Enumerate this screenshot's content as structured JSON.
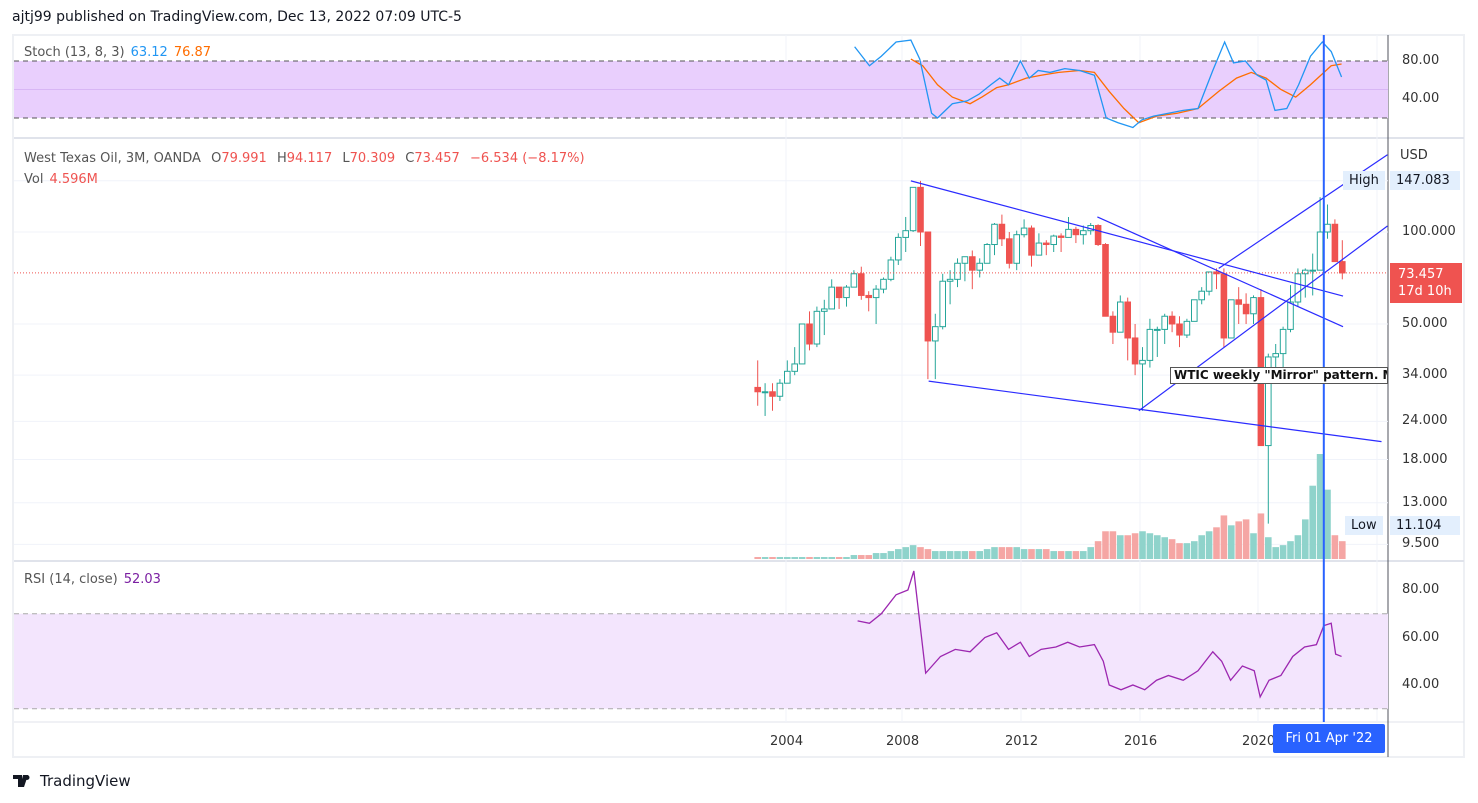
{
  "header": {
    "published": "ajtj99 published on TradingView.com, Dec 13, 2022 07:09 UTC-5"
  },
  "stoch": {
    "label": "Stoch (13, 8, 3)",
    "k": "63.12",
    "d": "76.87",
    "axis": [
      "80.00",
      "40.00"
    ],
    "k_color": "#2196f3",
    "d_color": "#ff6d00",
    "k_series": [
      [
        2006.4,
        95
      ],
      [
        2006.9,
        75
      ],
      [
        2007.3,
        85
      ],
      [
        2007.8,
        100
      ],
      [
        2008.3,
        102
      ],
      [
        2008.6,
        82
      ],
      [
        2009.0,
        25
      ],
      [
        2009.2,
        20
      ],
      [
        2009.7,
        35
      ],
      [
        2010.2,
        38
      ],
      [
        2010.6,
        45
      ],
      [
        2011.0,
        55
      ],
      [
        2011.3,
        62
      ],
      [
        2011.6,
        55
      ],
      [
        2012.0,
        80
      ],
      [
        2012.3,
        62
      ],
      [
        2012.6,
        70
      ],
      [
        2013.0,
        68
      ],
      [
        2013.5,
        72
      ],
      [
        2014.0,
        70
      ],
      [
        2014.5,
        65
      ],
      [
        2014.9,
        20
      ],
      [
        2015.3,
        15
      ],
      [
        2015.8,
        10
      ],
      [
        2016.1,
        18
      ],
      [
        2016.5,
        22
      ],
      [
        2017.0,
        25
      ],
      [
        2017.5,
        28
      ],
      [
        2018.0,
        30
      ],
      [
        2018.5,
        70
      ],
      [
        2018.9,
        100
      ],
      [
        2019.2,
        78
      ],
      [
        2019.6,
        80
      ],
      [
        2020.0,
        65
      ],
      [
        2020.3,
        60
      ],
      [
        2020.6,
        28
      ],
      [
        2021.0,
        30
      ],
      [
        2021.4,
        55
      ],
      [
        2021.8,
        85
      ],
      [
        2022.2,
        100
      ],
      [
        2022.5,
        90
      ],
      [
        2022.85,
        63.12
      ]
    ],
    "d_series": [
      [
        2008.3,
        82
      ],
      [
        2008.7,
        75
      ],
      [
        2009.2,
        55
      ],
      [
        2009.7,
        42
      ],
      [
        2010.3,
        35
      ],
      [
        2010.7,
        42
      ],
      [
        2011.2,
        52
      ],
      [
        2011.6,
        55
      ],
      [
        2012.2,
        62
      ],
      [
        2012.7,
        65
      ],
      [
        2013.3,
        68
      ],
      [
        2014.0,
        70
      ],
      [
        2014.5,
        68
      ],
      [
        2015.0,
        48
      ],
      [
        2015.5,
        30
      ],
      [
        2016.0,
        15
      ],
      [
        2016.6,
        22
      ],
      [
        2017.3,
        25
      ],
      [
        2018.0,
        30
      ],
      [
        2018.7,
        48
      ],
      [
        2019.3,
        62
      ],
      [
        2019.8,
        68
      ],
      [
        2020.3,
        62
      ],
      [
        2020.8,
        50
      ],
      [
        2021.3,
        42
      ],
      [
        2021.8,
        55
      ],
      [
        2022.5,
        75
      ],
      [
        2022.85,
        76.87
      ]
    ]
  },
  "main": {
    "symbol": "West Texas Oil, 3M, OANDA",
    "o_label": "O",
    "o": "79.991",
    "h_label": "H",
    "h": "94.117",
    "l_label": "L",
    "l": "70.309",
    "c_label": "C",
    "c": "73.457",
    "change": "−6.534 (−8.17%)",
    "vol_label": "Vol",
    "vol": "4.596M",
    "currency": "USD",
    "axis": [
      "147.083",
      "100.000",
      "50.000",
      "34.000",
      "24.000",
      "18.000",
      "13.000",
      "9.500"
    ],
    "high_label": "High",
    "high_value": "147.083",
    "low_label": "Low",
    "low_value": "11.104",
    "last_price": "73.457",
    "countdown": "17d 10h",
    "note": "WTIC weekly \"Mirror\" pattern. Mirror",
    "up_color": "#26a69a",
    "down_color": "#ef5350",
    "line_color": "#2b2bff",
    "start_year": 2003,
    "candles": [
      [
        31,
        38,
        27,
        30
      ],
      [
        30,
        32,
        25,
        30
      ],
      [
        30,
        32,
        26,
        29
      ],
      [
        29,
        33,
        28,
        32
      ],
      [
        32,
        38,
        32,
        35
      ],
      [
        35,
        42,
        34,
        37
      ],
      [
        37,
        50,
        37,
        50
      ],
      [
        50,
        55,
        41,
        43
      ],
      [
        43,
        57,
        42,
        55
      ],
      [
        55,
        60,
        46,
        56
      ],
      [
        56,
        70,
        56,
        66
      ],
      [
        66,
        66,
        56,
        61
      ],
      [
        61,
        67,
        57,
        66
      ],
      [
        66,
        75,
        66,
        73
      ],
      [
        73,
        77,
        60,
        62
      ],
      [
        62,
        64,
        55,
        61
      ],
      [
        61,
        67,
        50,
        65
      ],
      [
        65,
        71,
        63,
        70
      ],
      [
        70,
        83,
        69,
        81
      ],
      [
        81,
        99,
        78,
        96
      ],
      [
        96,
        112,
        86,
        101
      ],
      [
        101,
        140,
        100,
        140
      ],
      [
        140,
        147,
        90,
        100
      ],
      [
        100,
        100,
        33,
        44
      ],
      [
        44,
        54,
        33,
        49
      ],
      [
        49,
        73,
        48,
        69
      ],
      [
        69,
        75,
        58,
        70
      ],
      [
        70,
        82,
        66,
        79
      ],
      [
        79,
        83,
        69,
        83
      ],
      [
        83,
        87,
        65,
        75
      ],
      [
        75,
        82,
        71,
        79
      ],
      [
        79,
        92,
        80,
        91
      ],
      [
        91,
        107,
        84,
        106
      ],
      [
        106,
        114,
        90,
        95
      ],
      [
        95,
        100,
        76,
        79
      ],
      [
        79,
        101,
        75,
        98
      ],
      [
        98,
        110,
        96,
        103
      ],
      [
        103,
        105,
        77,
        84
      ],
      [
        84,
        99,
        84,
        92
      ],
      [
        92,
        94,
        84,
        91
      ],
      [
        91,
        98,
        86,
        97
      ],
      [
        97,
        99,
        86,
        96
      ],
      [
        96,
        112,
        96,
        102
      ],
      [
        102,
        104,
        92,
        98
      ],
      [
        98,
        105,
        91,
        101
      ],
      [
        101,
        107,
        98,
        105
      ],
      [
        105,
        106,
        90,
        91
      ],
      [
        91,
        92,
        53,
        53
      ],
      [
        53,
        55,
        43,
        47
      ],
      [
        47,
        62,
        47,
        59
      ],
      [
        59,
        61,
        38,
        45
      ],
      [
        45,
        50,
        34,
        37
      ],
      [
        37,
        42,
        26,
        38
      ],
      [
        38,
        52,
        36,
        48
      ],
      [
        48,
        49,
        39,
        48
      ],
      [
        48,
        54,
        43,
        53
      ],
      [
        53,
        55,
        47,
        50
      ],
      [
        50,
        53,
        42,
        46
      ],
      [
        46,
        52,
        45,
        51
      ],
      [
        51,
        60,
        51,
        60
      ],
      [
        60,
        66,
        58,
        64
      ],
      [
        64,
        73,
        62,
        74
      ],
      [
        74,
        76,
        65,
        73
      ],
      [
        73,
        76,
        42,
        45
      ],
      [
        45,
        60,
        45,
        60
      ],
      [
        60,
        66,
        50,
        58
      ],
      [
        58,
        63,
        50,
        54
      ],
      [
        54,
        62,
        50,
        61
      ],
      [
        61,
        65,
        20,
        20
      ],
      [
        20,
        40,
        11.104,
        39
      ],
      [
        39,
        43,
        35,
        40
      ],
      [
        40,
        49,
        33,
        48
      ],
      [
        48,
        67,
        47,
        59
      ],
      [
        59,
        76,
        57,
        73
      ],
      [
        73,
        76,
        61,
        75
      ],
      [
        75,
        85,
        62,
        75
      ],
      [
        75,
        130,
        75,
        100
      ],
      [
        100,
        123,
        95,
        106
      ],
      [
        106,
        110,
        80,
        80
      ],
      [
        80,
        94,
        70,
        73.457
      ]
    ],
    "volume": [
      1,
      1,
      1,
      1,
      1,
      1,
      1,
      1,
      1,
      1,
      1,
      1,
      1,
      2,
      2,
      2,
      3,
      3,
      4,
      5,
      6,
      7,
      6,
      5,
      4,
      4,
      4,
      4,
      4,
      4,
      4,
      5,
      6,
      6,
      6,
      6,
      5,
      5,
      5,
      5,
      4,
      4,
      4,
      4,
      4,
      6,
      9,
      14,
      14,
      12,
      12,
      13,
      14,
      13,
      12,
      11,
      10,
      8,
      8,
      9,
      12,
      14,
      16,
      22,
      17,
      19,
      20,
      13,
      23,
      11,
      6,
      7,
      9,
      12,
      20,
      37,
      53,
      35,
      12,
      9
    ]
  },
  "trendlines": [
    [
      [
        2008.3,
        147
      ],
      [
        2022.9,
        61.7
      ]
    ],
    [
      [
        2014.6,
        112
      ],
      [
        2022.9,
        49
      ]
    ],
    [
      [
        2018.7,
        76
      ],
      [
        2024.4,
        179
      ]
    ],
    [
      [
        2016.0,
        26
      ],
      [
        2024.4,
        104.6
      ]
    ],
    [
      [
        2008.9,
        32.5
      ],
      [
        2024.2,
        20.6
      ]
    ]
  ],
  "rsi": {
    "label": "RSI (14, close)",
    "value": "52.03",
    "axis": [
      "80.00",
      "60.00",
      "40.00"
    ],
    "color": "#9c27b0",
    "series": [
      [
        2006.5,
        67
      ],
      [
        2006.9,
        66
      ],
      [
        2007.3,
        70
      ],
      [
        2007.8,
        78
      ],
      [
        2008.2,
        80
      ],
      [
        2008.4,
        88
      ],
      [
        2008.8,
        45
      ],
      [
        2009.3,
        52
      ],
      [
        2009.8,
        55
      ],
      [
        2010.3,
        54
      ],
      [
        2010.8,
        60
      ],
      [
        2011.2,
        62
      ],
      [
        2011.6,
        55
      ],
      [
        2012.0,
        58
      ],
      [
        2012.3,
        52
      ],
      [
        2012.7,
        55
      ],
      [
        2013.2,
        56
      ],
      [
        2013.6,
        58
      ],
      [
        2014.0,
        56
      ],
      [
        2014.5,
        57
      ],
      [
        2014.8,
        50
      ],
      [
        2015.0,
        40
      ],
      [
        2015.4,
        38
      ],
      [
        2015.8,
        40
      ],
      [
        2016.2,
        38
      ],
      [
        2016.6,
        42
      ],
      [
        2017.0,
        44
      ],
      [
        2017.5,
        42
      ],
      [
        2018.0,
        46
      ],
      [
        2018.5,
        54
      ],
      [
        2018.8,
        50
      ],
      [
        2019.1,
        42
      ],
      [
        2019.5,
        48
      ],
      [
        2019.9,
        46
      ],
      [
        2020.1,
        35
      ],
      [
        2020.4,
        42
      ],
      [
        2020.8,
        44
      ],
      [
        2021.2,
        52
      ],
      [
        2021.6,
        56
      ],
      [
        2022.0,
        57
      ],
      [
        2022.25,
        65
      ],
      [
        2022.5,
        66
      ],
      [
        2022.65,
        53
      ],
      [
        2022.85,
        52.03
      ]
    ]
  },
  "time_axis": [
    "2004",
    "2008",
    "2012",
    "2016",
    "2020"
  ],
  "crosshair": {
    "date": "Fri 01 Apr '22",
    "year": 2022.25
  },
  "brand": "TradingView"
}
